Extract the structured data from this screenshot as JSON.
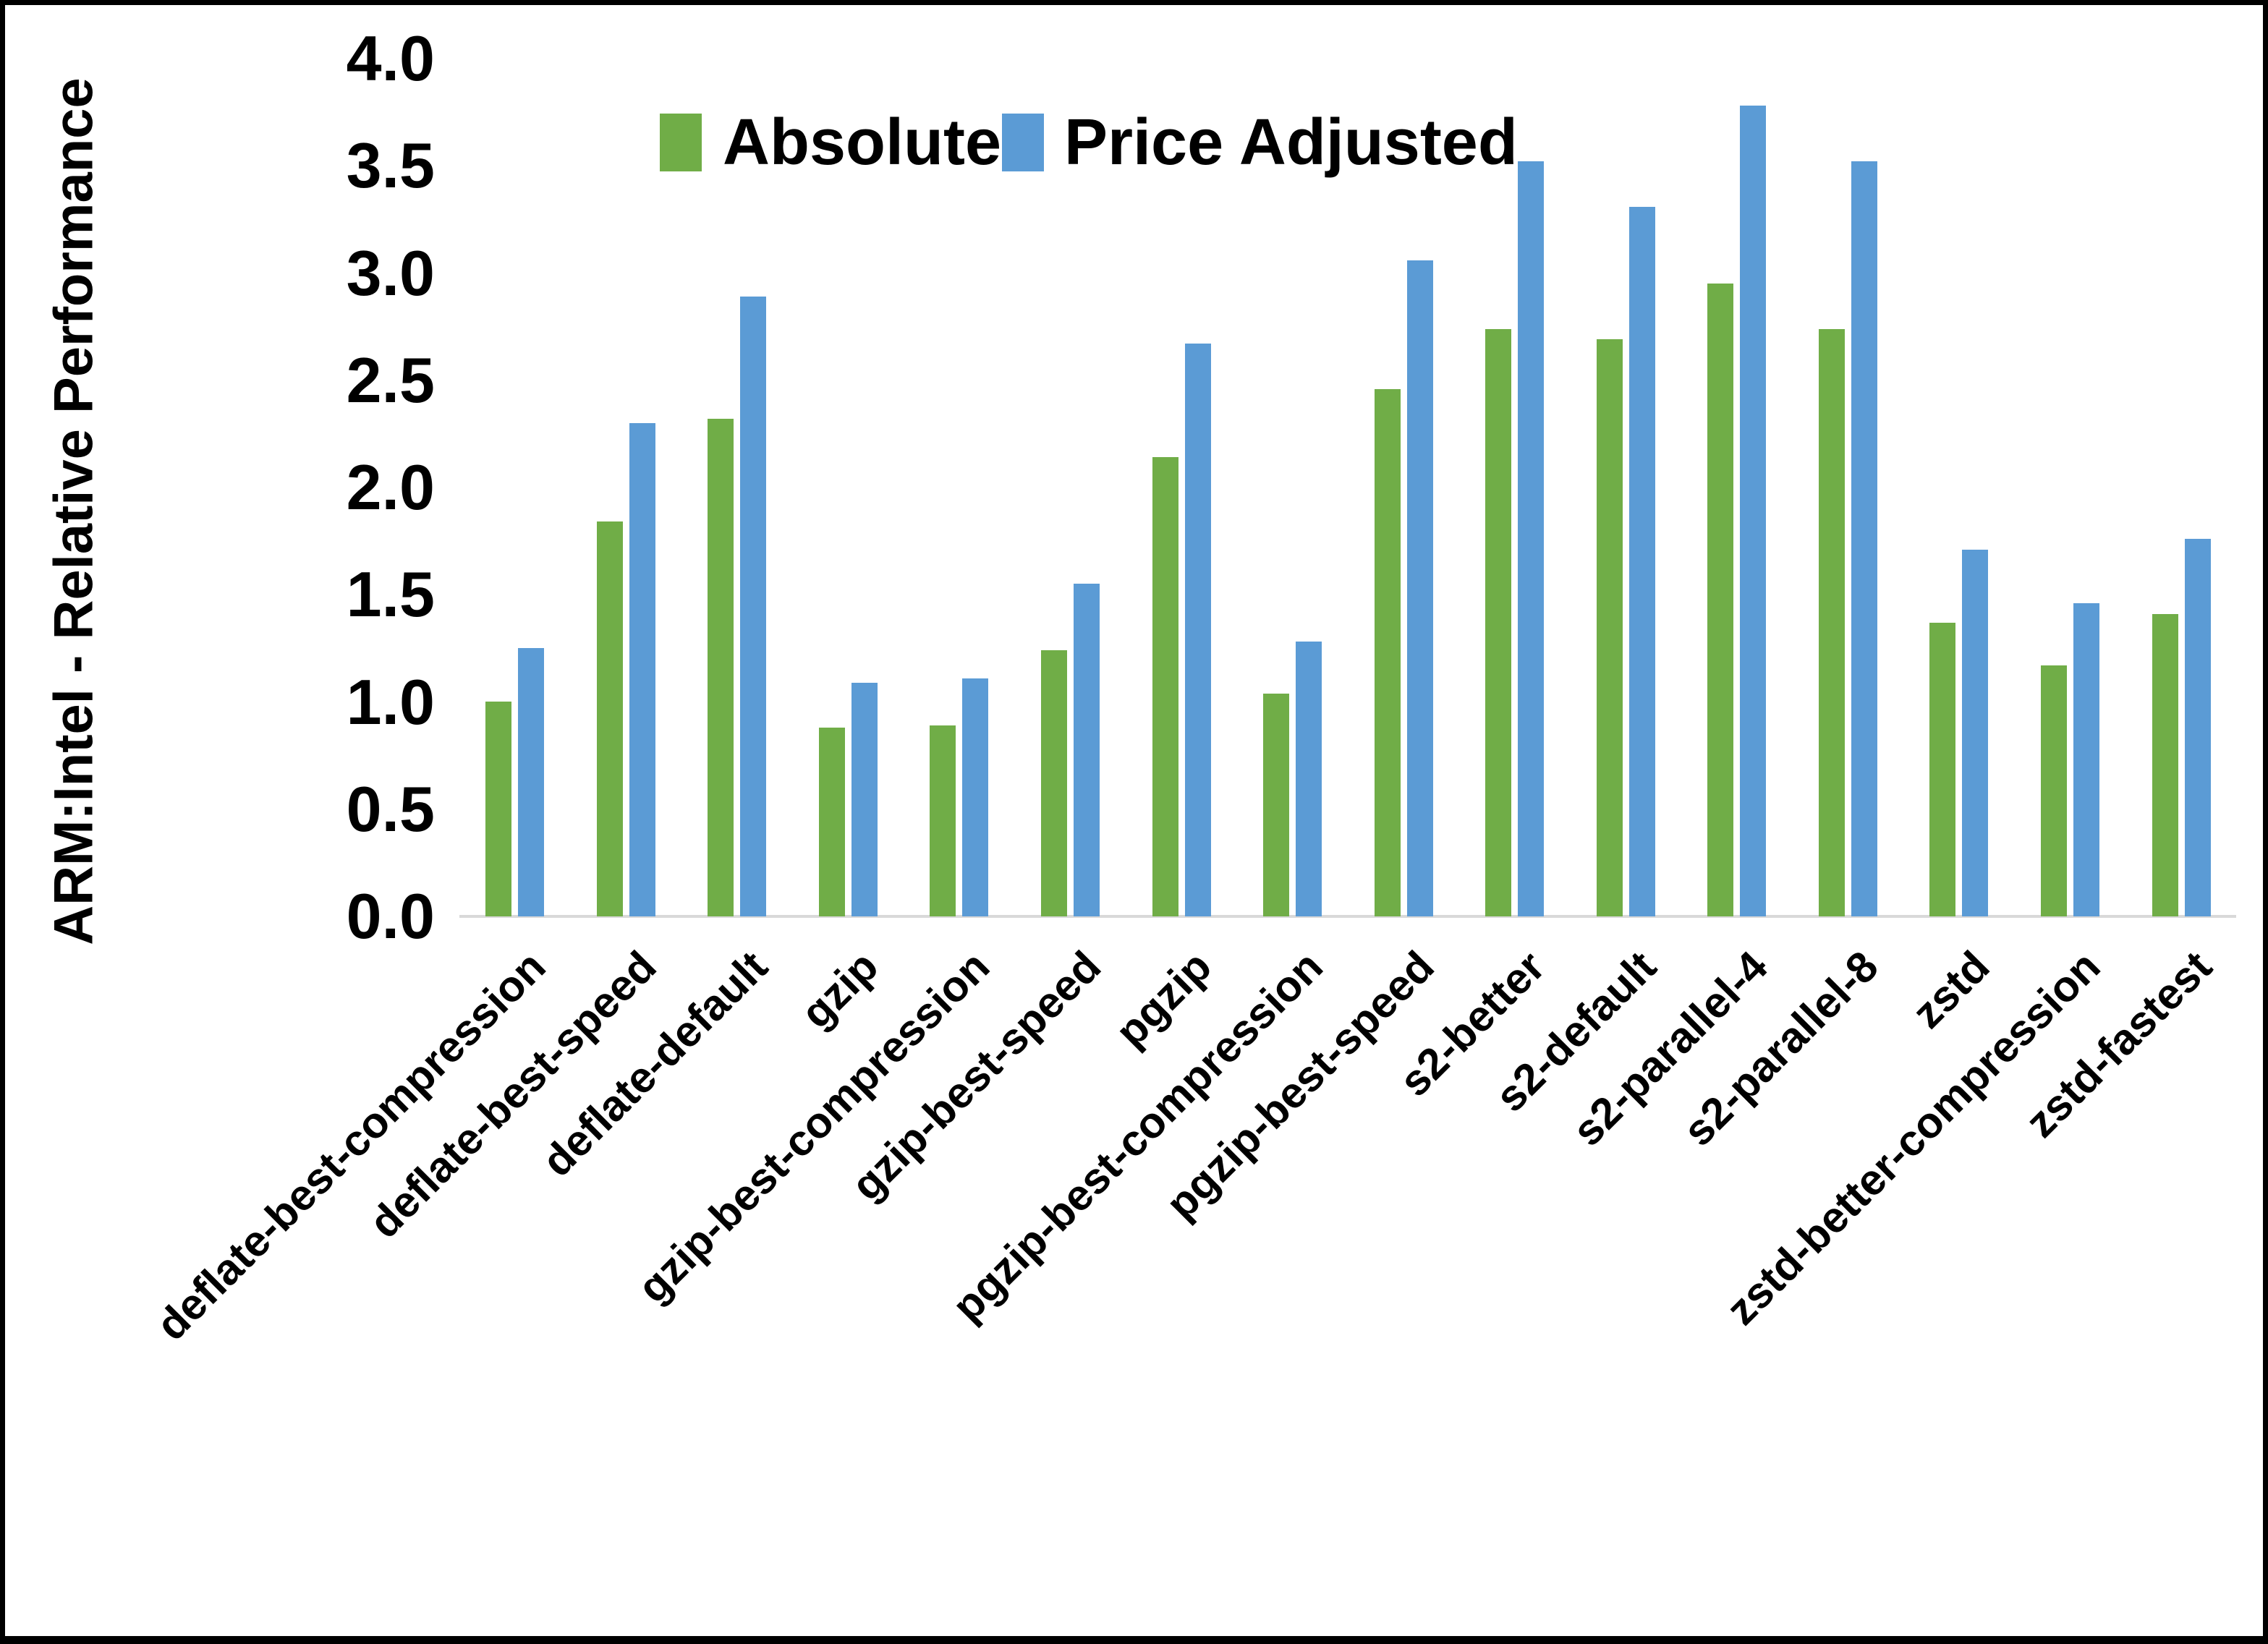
{
  "page": {
    "background": "#ffffff",
    "frame_border_color": "#000000",
    "axis_line_color": "#d9d9d9",
    "text_color": "#000000"
  },
  "chart_data": {
    "type": "bar",
    "title": "",
    "xlabel": "",
    "ylabel": "ARM:Intel - Relative Performance",
    "ylim": [
      0.0,
      4.0
    ],
    "ytick_step": 0.5,
    "ytick_labels": [
      "0.0",
      "0.5",
      "1.0",
      "1.5",
      "2.0",
      "2.5",
      "3.0",
      "3.5",
      "4.0"
    ],
    "grid": false,
    "legend_position": "top-center-inside",
    "categories": [
      "deflate-best-compression",
      "deflate-best-speed",
      "deflate-default",
      "gzip",
      "gzip-best-compression",
      "gzip-best-speed",
      "pgzip",
      "pgzip-best-compression",
      "pgzip-best-speed",
      "s2-better",
      "s2-default",
      "s2-parallel-4",
      "s2-parallel-8",
      "zstd",
      "zstd-better-compression",
      "zstd-fastest"
    ],
    "series": [
      {
        "name": "Absolute",
        "color": "#70AD47",
        "values": [
          1.0,
          1.84,
          2.32,
          0.88,
          0.89,
          1.24,
          2.14,
          1.04,
          2.46,
          2.74,
          2.69,
          2.95,
          2.74,
          1.37,
          1.17,
          1.41
        ]
      },
      {
        "name": "Price Adjusted",
        "color": "#5B9BD5",
        "values": [
          1.25,
          2.3,
          2.89,
          1.09,
          1.11,
          1.55,
          2.67,
          1.28,
          3.06,
          3.52,
          3.31,
          3.78,
          3.52,
          1.71,
          1.46,
          1.76
        ]
      }
    ]
  }
}
